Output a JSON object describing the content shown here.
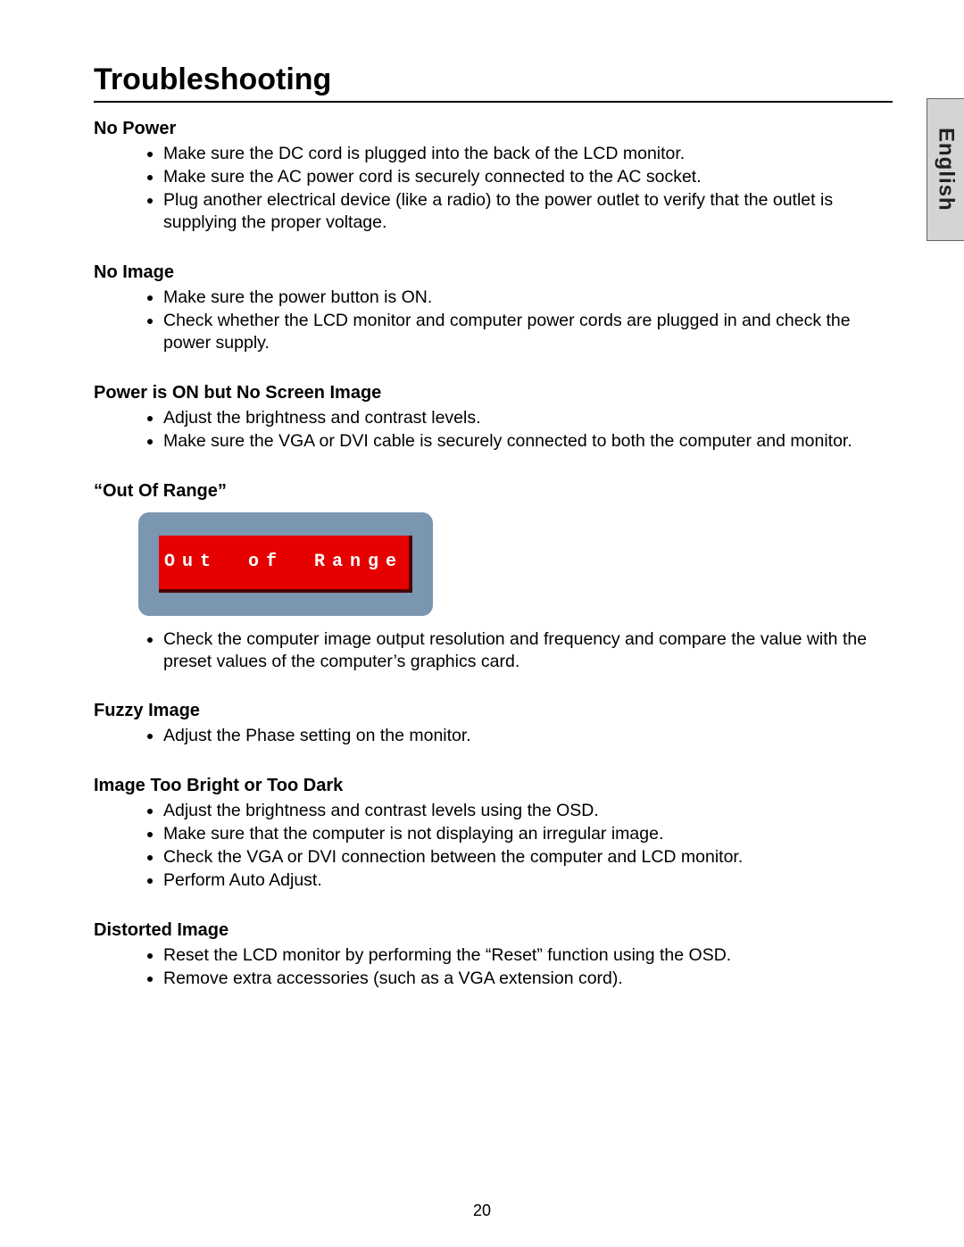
{
  "page": {
    "title": "Troubleshooting",
    "language_tab": "English",
    "page_number": "20"
  },
  "sections": [
    {
      "heading": "No Power",
      "items": [
        "Make sure the DC cord is plugged into the back of the LCD monitor.",
        "Make sure the AC power cord is securely connected to the AC socket.",
        "Plug another electrical device (like a radio) to the power outlet to verify that the outlet is supplying the proper voltage."
      ]
    },
    {
      "heading": "No Image",
      "items": [
        "Make sure the power button is ON.",
        "Check whether the LCD monitor and computer power cords are plugged in and check the power supply."
      ]
    },
    {
      "heading": "Power is ON but No Screen Image",
      "items": [
        "Adjust the brightness and contrast levels.",
        "Make sure the VGA or DVI cable is securely connected to both the computer and monitor."
      ]
    },
    {
      "heading": "“Out Of Range”",
      "graphic": {
        "outer_bg": "#7a96b0",
        "inner_bg": "#e60000",
        "inner_shadow": "#4a0000",
        "text_color": "#ffffff",
        "text": "Out of Range"
      },
      "items": [
        "Check the computer image output resolution and frequency and compare the value with the preset values of the computer’s graphics card."
      ]
    },
    {
      "heading": "Fuzzy Image",
      "items": [
        "Adjust the Phase setting on the monitor."
      ]
    },
    {
      "heading": "Image Too Bright or Too Dark",
      "items": [
        "Adjust the brightness and contrast levels using the OSD.",
        "Make sure that the computer is not displaying an irregular image.",
        "Check the VGA or DVI connection between the computer and LCD monitor.",
        "Perform Auto Adjust."
      ]
    },
    {
      "heading": "Distorted Image",
      "items": [
        "Reset the LCD monitor by performing the “Reset” function using the OSD.",
        "Remove extra accessories (such as a VGA extension cord)."
      ]
    }
  ]
}
